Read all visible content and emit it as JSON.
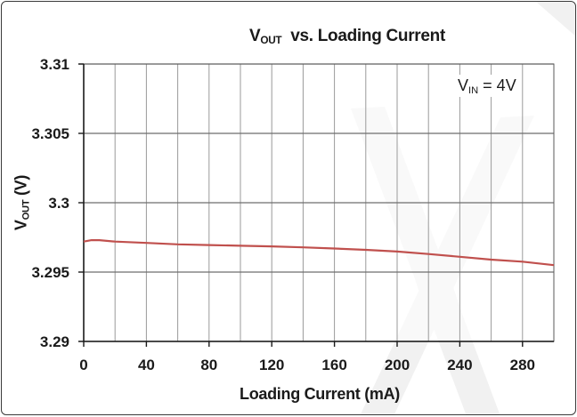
{
  "chart_data": {
    "type": "line",
    "title_main": "V",
    "title_sub": "OUT",
    "title_rest": "  vs. Loading Current",
    "xlabel": "Loading Current (mA)",
    "ylabel_main": "V",
    "ylabel_sub": "OUT",
    "ylabel_rest": " (V)",
    "annotation_main": "V",
    "annotation_sub": "IN",
    "annotation_rest": " = 4V",
    "xlim": [
      0,
      300
    ],
    "ylim": [
      3.29,
      3.31
    ],
    "x_ticks": [
      0,
      40,
      80,
      120,
      160,
      200,
      240,
      280
    ],
    "x_tick_labels": [
      "0",
      "40",
      "80",
      "120",
      "160",
      "200",
      "240",
      "280"
    ],
    "y_ticks": [
      3.29,
      3.295,
      3.3,
      3.305,
      3.31
    ],
    "y_tick_labels": [
      "3.29",
      "3.295",
      "3.3",
      "3.305",
      "3.31"
    ],
    "x_grid_step": 20,
    "grid": true,
    "series": [
      {
        "color": "#c0504d",
        "x": [
          0,
          5,
          10,
          20,
          40,
          60,
          80,
          100,
          120,
          140,
          160,
          180,
          200,
          220,
          240,
          260,
          280,
          300
        ],
        "y": [
          3.2972,
          3.2973,
          3.2973,
          3.2972,
          3.2971,
          3.297,
          3.29695,
          3.2969,
          3.29685,
          3.29678,
          3.2967,
          3.2966,
          3.29648,
          3.2963,
          3.2961,
          3.2959,
          3.29575,
          3.2955
        ]
      }
    ]
  }
}
